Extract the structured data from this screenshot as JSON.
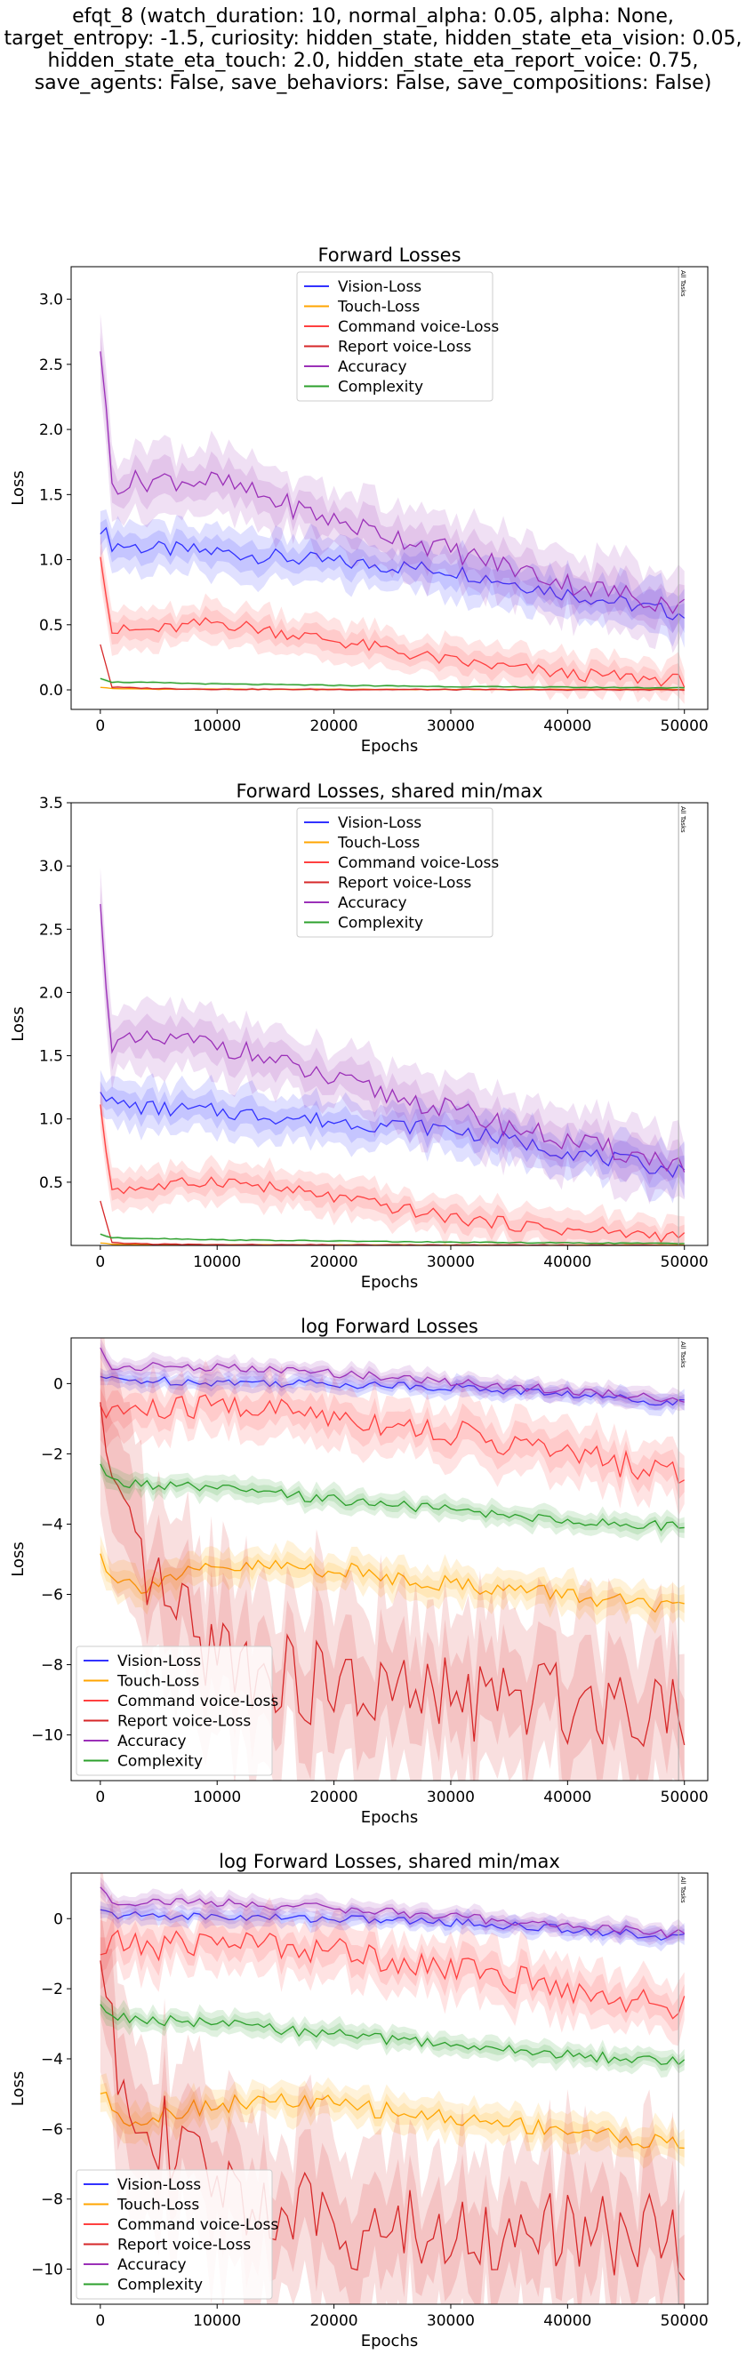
{
  "suptitle_lines": [
    "efqt_8 (watch_duration: 10, normal_alpha: 0.05, alpha: None,",
    "target_entropy: -1.5, curiosity: hidden_state, hidden_state_eta_vision: 0.05,",
    "hidden_state_eta_touch: 2.0, hidden_state_eta_report_voice: 0.75,",
    "save_agents: False, save_behaviors: False, save_compositions: False)"
  ],
  "colors": {
    "Vision-Loss": "#3232ff",
    "Touch-Loss": "#ffa500",
    "Command voice-Loss": "#ff4040",
    "Report voice-Loss": "#d62728",
    "Accuracy": "#9b30b8",
    "Complexity": "#2ca02c"
  },
  "chart_data": [
    {
      "type": "line",
      "title": "Forward Losses",
      "xlabel": "Epochs",
      "ylabel": "Loss",
      "xlim": [
        -2500,
        52000
      ],
      "ylim": [
        -0.15,
        3.25
      ],
      "xticks": [
        0,
        10000,
        20000,
        30000,
        40000,
        50000
      ],
      "yticks": [
        0.0,
        0.5,
        1.0,
        1.5,
        2.0,
        2.5,
        3.0
      ],
      "ytick_labels": [
        "0.0",
        "0.5",
        "1.0",
        "1.5",
        "2.0",
        "2.5",
        "3.0"
      ],
      "legend_loc": "upper center",
      "marker": {
        "x": 49500,
        "label": "All Tasks"
      },
      "series": [
        {
          "name": "Vision-Loss",
          "x": [
            0,
            1000,
            5000,
            10000,
            20000,
            30000,
            40000,
            50000
          ],
          "y": [
            1.26,
            1.12,
            1.08,
            1.06,
            0.98,
            0.92,
            0.74,
            0.58
          ],
          "band": 0.18
        },
        {
          "name": "Touch-Loss",
          "x": [
            0,
            1000,
            5000,
            10000,
            20000,
            30000,
            40000,
            50000
          ],
          "y": [
            0.02,
            0.01,
            0.005,
            0.005,
            0.004,
            0.003,
            0.003,
            0.003
          ],
          "band": 0.005
        },
        {
          "name": "Command voice-Loss",
          "x": [
            0,
            1000,
            5000,
            10000,
            20000,
            30000,
            40000,
            50000
          ],
          "y": [
            1.07,
            0.45,
            0.46,
            0.52,
            0.38,
            0.22,
            0.12,
            0.07
          ],
          "band": 0.15
        },
        {
          "name": "Report voice-Loss",
          "x": [
            0,
            1000,
            5000,
            10000,
            20000,
            30000,
            40000,
            50000
          ],
          "y": [
            0.35,
            0.02,
            0.01,
            0.005,
            0.003,
            0.002,
            0.001,
            0.001
          ],
          "band": 0.01
        },
        {
          "name": "Accuracy",
          "x": [
            0,
            1000,
            5000,
            10000,
            20000,
            30000,
            40000,
            50000
          ],
          "y": [
            2.65,
            1.58,
            1.62,
            1.6,
            1.3,
            1.07,
            0.82,
            0.64
          ],
          "band": 0.25
        },
        {
          "name": "Complexity",
          "x": [
            0,
            1000,
            5000,
            10000,
            20000,
            30000,
            40000,
            50000
          ],
          "y": [
            0.09,
            0.06,
            0.055,
            0.045,
            0.035,
            0.025,
            0.02,
            0.015
          ],
          "band": 0.01
        }
      ]
    },
    {
      "type": "line",
      "title": "Forward Losses, shared min/max",
      "xlabel": "Epochs",
      "ylabel": "Loss",
      "xlim": [
        -2500,
        52000
      ],
      "ylim": [
        0.0,
        3.5
      ],
      "xticks": [
        0,
        10000,
        20000,
        30000,
        40000,
        50000
      ],
      "yticks": [
        0.5,
        1.0,
        1.5,
        2.0,
        2.5,
        3.0,
        3.5
      ],
      "ytick_labels": [
        "0.5",
        "1.0",
        "1.5",
        "2.0",
        "2.5",
        "3.0",
        "3.5"
      ],
      "legend_loc": "upper center",
      "marker": {
        "x": 49500,
        "label": "All Tasks"
      },
      "series": [
        {
          "name": "Vision-Loss",
          "x": [
            0,
            1000,
            5000,
            10000,
            20000,
            30000,
            40000,
            50000
          ],
          "y": [
            1.26,
            1.12,
            1.08,
            1.06,
            0.98,
            0.92,
            0.74,
            0.58
          ],
          "band": 0.18
        },
        {
          "name": "Touch-Loss",
          "x": [
            0,
            1000,
            5000,
            10000,
            20000,
            30000,
            40000,
            50000
          ],
          "y": [
            0.02,
            0.01,
            0.005,
            0.005,
            0.004,
            0.003,
            0.003,
            0.003
          ],
          "band": 0.005
        },
        {
          "name": "Command voice-Loss",
          "x": [
            0,
            1000,
            5000,
            10000,
            20000,
            30000,
            40000,
            50000
          ],
          "y": [
            1.07,
            0.45,
            0.46,
            0.52,
            0.38,
            0.22,
            0.12,
            0.07
          ],
          "band": 0.15
        },
        {
          "name": "Report voice-Loss",
          "x": [
            0,
            1000,
            5000,
            10000,
            20000,
            30000,
            40000,
            50000
          ],
          "y": [
            0.35,
            0.02,
            0.01,
            0.005,
            0.003,
            0.002,
            0.001,
            0.001
          ],
          "band": 0.01
        },
        {
          "name": "Accuracy",
          "x": [
            0,
            1000,
            5000,
            10000,
            20000,
            30000,
            40000,
            50000
          ],
          "y": [
            2.65,
            1.58,
            1.62,
            1.6,
            1.3,
            1.07,
            0.82,
            0.64
          ],
          "band": 0.25
        },
        {
          "name": "Complexity",
          "x": [
            0,
            1000,
            5000,
            10000,
            20000,
            30000,
            40000,
            50000
          ],
          "y": [
            0.09,
            0.06,
            0.055,
            0.045,
            0.035,
            0.025,
            0.02,
            0.015
          ],
          "band": 0.01
        }
      ]
    },
    {
      "type": "line",
      "title": "log Forward Losses",
      "xlabel": "Epochs",
      "ylabel": "Loss",
      "xlim": [
        -2500,
        52000
      ],
      "ylim": [
        -11.3,
        1.3
      ],
      "xticks": [
        0,
        10000,
        20000,
        30000,
        40000,
        50000
      ],
      "yticks": [
        -10,
        -8,
        -6,
        -4,
        -2,
        0
      ],
      "ytick_labels": [
        "−10",
        "−8",
        "−6",
        "−4",
        "−2",
        "0"
      ],
      "legend_loc": "lower left",
      "marker": {
        "x": 49500,
        "label": "All Tasks"
      },
      "series": [
        {
          "name": "Vision-Loss",
          "x": [
            0,
            1000,
            5000,
            10000,
            20000,
            30000,
            40000,
            50000
          ],
          "y": [
            0.2,
            0.1,
            0.08,
            0.05,
            0.0,
            -0.1,
            -0.3,
            -0.55
          ],
          "band": 0.25
        },
        {
          "name": "Touch-Loss",
          "x": [
            0,
            1000,
            3000,
            6000,
            10000,
            15000,
            20000,
            25000,
            30000,
            40000,
            50000
          ],
          "y": [
            -4.9,
            -5.4,
            -5.8,
            -5.5,
            -5.3,
            -5.2,
            -5.3,
            -5.5,
            -5.7,
            -6.0,
            -6.5
          ],
          "band": 0.5
        },
        {
          "name": "Command voice-Loss",
          "x": [
            0,
            1000,
            5000,
            10000,
            20000,
            30000,
            40000,
            50000
          ],
          "y": [
            -1.0,
            -0.7,
            -0.8,
            -0.6,
            -0.9,
            -1.4,
            -2.0,
            -2.6
          ],
          "band": 0.8
        },
        {
          "name": "Report voice-Loss",
          "x": [
            0,
            1000,
            2000,
            4000,
            6000,
            8000,
            10000,
            15000,
            20000,
            25000,
            30000,
            40000,
            50000
          ],
          "y": [
            -1.0,
            -3.5,
            -4.5,
            -5.5,
            -6.5,
            -7.2,
            -7.6,
            -8.3,
            -8.7,
            -8.9,
            -9.0,
            -9.0,
            -9.1
          ],
          "band": 2.5
        },
        {
          "name": "Accuracy",
          "x": [
            0,
            1000,
            5000,
            10000,
            20000,
            30000,
            40000,
            50000
          ],
          "y": [
            0.95,
            0.45,
            0.5,
            0.45,
            0.3,
            0.05,
            -0.2,
            -0.45
          ],
          "band": 0.25
        },
        {
          "name": "Complexity",
          "x": [
            0,
            1000,
            5000,
            10000,
            20000,
            30000,
            40000,
            50000
          ],
          "y": [
            -2.4,
            -2.8,
            -2.9,
            -3.0,
            -3.3,
            -3.6,
            -3.9,
            -4.1
          ],
          "band": 0.3
        }
      ]
    },
    {
      "type": "line",
      "title": "log Forward Losses, shared min/max",
      "xlabel": "Epochs",
      "ylabel": "Loss",
      "xlim": [
        -2500,
        52000
      ],
      "ylim": [
        -11.0,
        1.3
      ],
      "xticks": [
        0,
        10000,
        20000,
        30000,
        40000,
        50000
      ],
      "yticks": [
        -10,
        -8,
        -6,
        -4,
        -2,
        0
      ],
      "ytick_labels": [
        "−10",
        "−8",
        "−6",
        "−4",
        "−2",
        "0"
      ],
      "legend_loc": "lower left",
      "marker": {
        "x": 49500,
        "label": "All Tasks"
      },
      "series": [
        {
          "name": "Vision-Loss",
          "x": [
            0,
            1000,
            5000,
            10000,
            20000,
            30000,
            40000,
            50000
          ],
          "y": [
            0.2,
            0.1,
            0.08,
            0.05,
            0.0,
            -0.1,
            -0.3,
            -0.55
          ],
          "band": 0.25
        },
        {
          "name": "Touch-Loss",
          "x": [
            0,
            1000,
            3000,
            6000,
            10000,
            15000,
            20000,
            25000,
            30000,
            40000,
            50000
          ],
          "y": [
            -4.9,
            -5.4,
            -5.8,
            -5.5,
            -5.3,
            -5.2,
            -5.3,
            -5.5,
            -5.7,
            -6.0,
            -6.5
          ],
          "band": 0.5
        },
        {
          "name": "Command voice-Loss",
          "x": [
            0,
            1000,
            5000,
            10000,
            20000,
            30000,
            40000,
            50000
          ],
          "y": [
            -1.0,
            -0.7,
            -0.8,
            -0.6,
            -0.9,
            -1.4,
            -2.0,
            -2.6
          ],
          "band": 0.8
        },
        {
          "name": "Report voice-Loss",
          "x": [
            0,
            1000,
            2000,
            4000,
            6000,
            8000,
            10000,
            15000,
            20000,
            25000,
            30000,
            40000,
            50000
          ],
          "y": [
            -1.0,
            -3.5,
            -4.5,
            -5.5,
            -6.5,
            -7.2,
            -7.6,
            -8.3,
            -8.7,
            -8.9,
            -9.0,
            -9.0,
            -9.1
          ],
          "band": 2.5
        },
        {
          "name": "Accuracy",
          "x": [
            0,
            1000,
            5000,
            10000,
            20000,
            30000,
            40000,
            50000
          ],
          "y": [
            0.95,
            0.45,
            0.5,
            0.45,
            0.3,
            0.05,
            -0.2,
            -0.45
          ],
          "band": 0.25
        },
        {
          "name": "Complexity",
          "x": [
            0,
            1000,
            5000,
            10000,
            20000,
            30000,
            40000,
            50000
          ],
          "y": [
            -2.4,
            -2.8,
            -2.9,
            -3.0,
            -3.3,
            -3.6,
            -3.9,
            -4.1
          ],
          "band": 0.3
        }
      ]
    }
  ]
}
